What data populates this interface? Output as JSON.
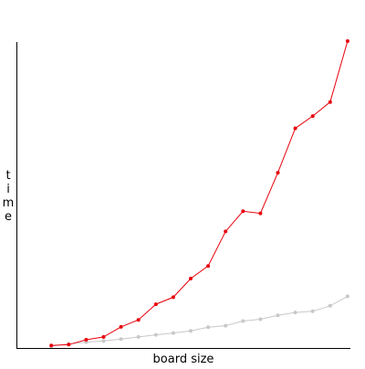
{
  "chart_data": {
    "type": "line",
    "title": "",
    "xlabel": "board size",
    "ylabel": "time",
    "grid": false,
    "legend": false,
    "xlim": [
      0,
      20
    ],
    "ylim": [
      0,
      100
    ],
    "x": [
      2,
      3,
      4,
      5,
      6,
      7,
      8,
      9,
      10,
      11,
      12,
      13,
      14,
      15,
      16,
      17,
      18,
      19,
      20
    ],
    "series": [
      {
        "color": "#e8000b",
        "values": [
          0.5,
          0.8,
          2.4,
          3.3,
          6.6,
          8.9,
          14.0,
          16.3,
          22.4,
          26.5,
          37.8,
          44.4,
          43.7,
          57.0,
          71.5,
          75.5,
          80.1,
          100.0,
          null
        ]
      },
      {
        "color": "#c8c8c8",
        "values": [
          0.3,
          1.0,
          1.6,
          2.0,
          2.6,
          3.3,
          4.0,
          4.6,
          5.3,
          6.5,
          7.0,
          8.5,
          9.1,
          10.4,
          11.3,
          11.7,
          13.5,
          16.6,
          null
        ]
      }
    ]
  }
}
